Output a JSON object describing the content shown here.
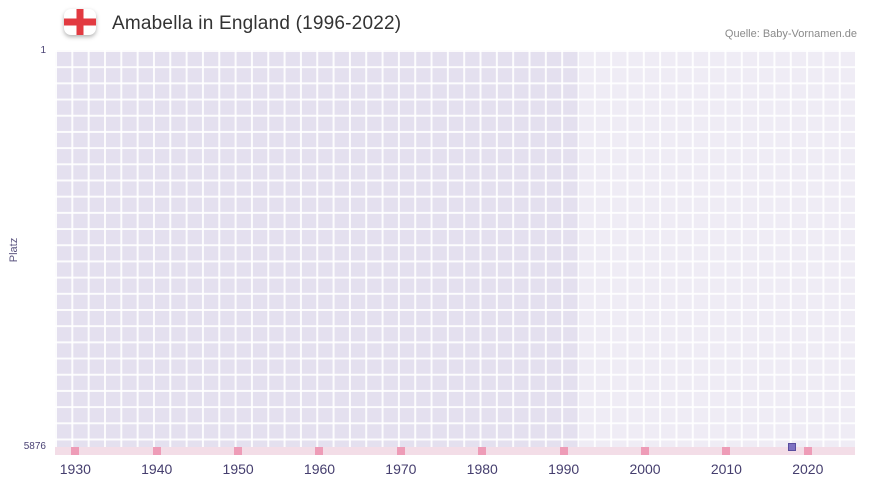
{
  "header": {
    "flag_icon": "england-flag",
    "source": "Quelle: Baby-Vornamen.de"
  },
  "chart_data": {
    "type": "scatter",
    "title": "Amabella in England (1996-2022)",
    "ylabel": "Platz",
    "y_axis": {
      "min": 1,
      "max": 5876,
      "min_label": "1",
      "max_label": "5876",
      "inverted": true
    },
    "x_axis": {
      "range": [
        1927.5,
        2025.8
      ],
      "ticks": [
        1930,
        1940,
        1950,
        1960,
        1970,
        1980,
        1990,
        2000,
        2010,
        2020
      ]
    },
    "highlight_region": {
      "from": 1992,
      "to": 2025.8
    },
    "points": [
      {
        "year": 2018,
        "rank": 5876
      }
    ],
    "decade_markers": [
      1930,
      1940,
      1950,
      1960,
      1970,
      1980,
      1990,
      2000,
      2010,
      2020
    ],
    "grid": true,
    "colors": {
      "grid_cell": "#e4e0ef",
      "grid_line": "#ffffff",
      "highlight_overlay": "rgba(255,255,255,0.4)",
      "baseline_row": "#f3dde7",
      "decade_marker": "#ee9cb7",
      "point": "#7e71c2",
      "axis_text": "#453e6e",
      "title_text": "#333333",
      "source_text": "#8a8a8a",
      "flag_red": "#e23a41"
    }
  }
}
